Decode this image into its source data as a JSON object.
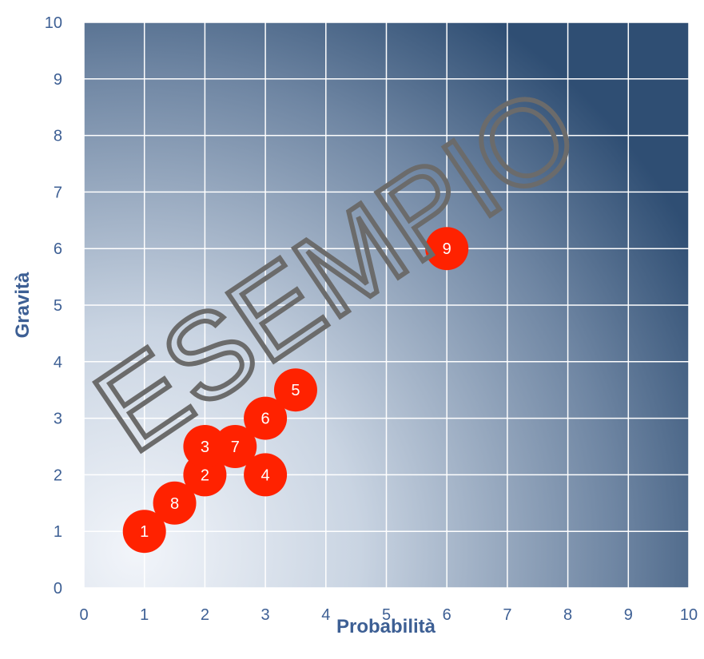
{
  "chart_data": {
    "type": "scatter",
    "title": "",
    "xlabel": "Probabilità",
    "ylabel": "Gravità",
    "xlim": [
      0,
      10
    ],
    "ylim": [
      0,
      10
    ],
    "x_ticks": [
      "0",
      "1",
      "2",
      "3",
      "4",
      "5",
      "6",
      "7",
      "8",
      "9",
      "10"
    ],
    "y_ticks": [
      "0",
      "1",
      "2",
      "3",
      "4",
      "5",
      "6",
      "7",
      "8",
      "9",
      "10"
    ],
    "grid": true,
    "points": [
      {
        "label": "1",
        "x": 1,
        "y": 1
      },
      {
        "label": "2",
        "x": 2,
        "y": 2
      },
      {
        "label": "3",
        "x": 2,
        "y": 2.5
      },
      {
        "label": "4",
        "x": 3,
        "y": 2
      },
      {
        "label": "5",
        "x": 3.5,
        "y": 3.5
      },
      {
        "label": "6",
        "x": 3,
        "y": 3
      },
      {
        "label": "7",
        "x": 2.5,
        "y": 2.5
      },
      {
        "label": "8",
        "x": 1.5,
        "y": 1.5
      },
      {
        "label": "9",
        "x": 6,
        "y": 6
      }
    ],
    "colors": {
      "marker": "#ff2200",
      "text": "#3d5f94",
      "background_light": "#e8eef6",
      "background_dark": "#2f4e73"
    }
  },
  "watermark": "ESEMPIO"
}
